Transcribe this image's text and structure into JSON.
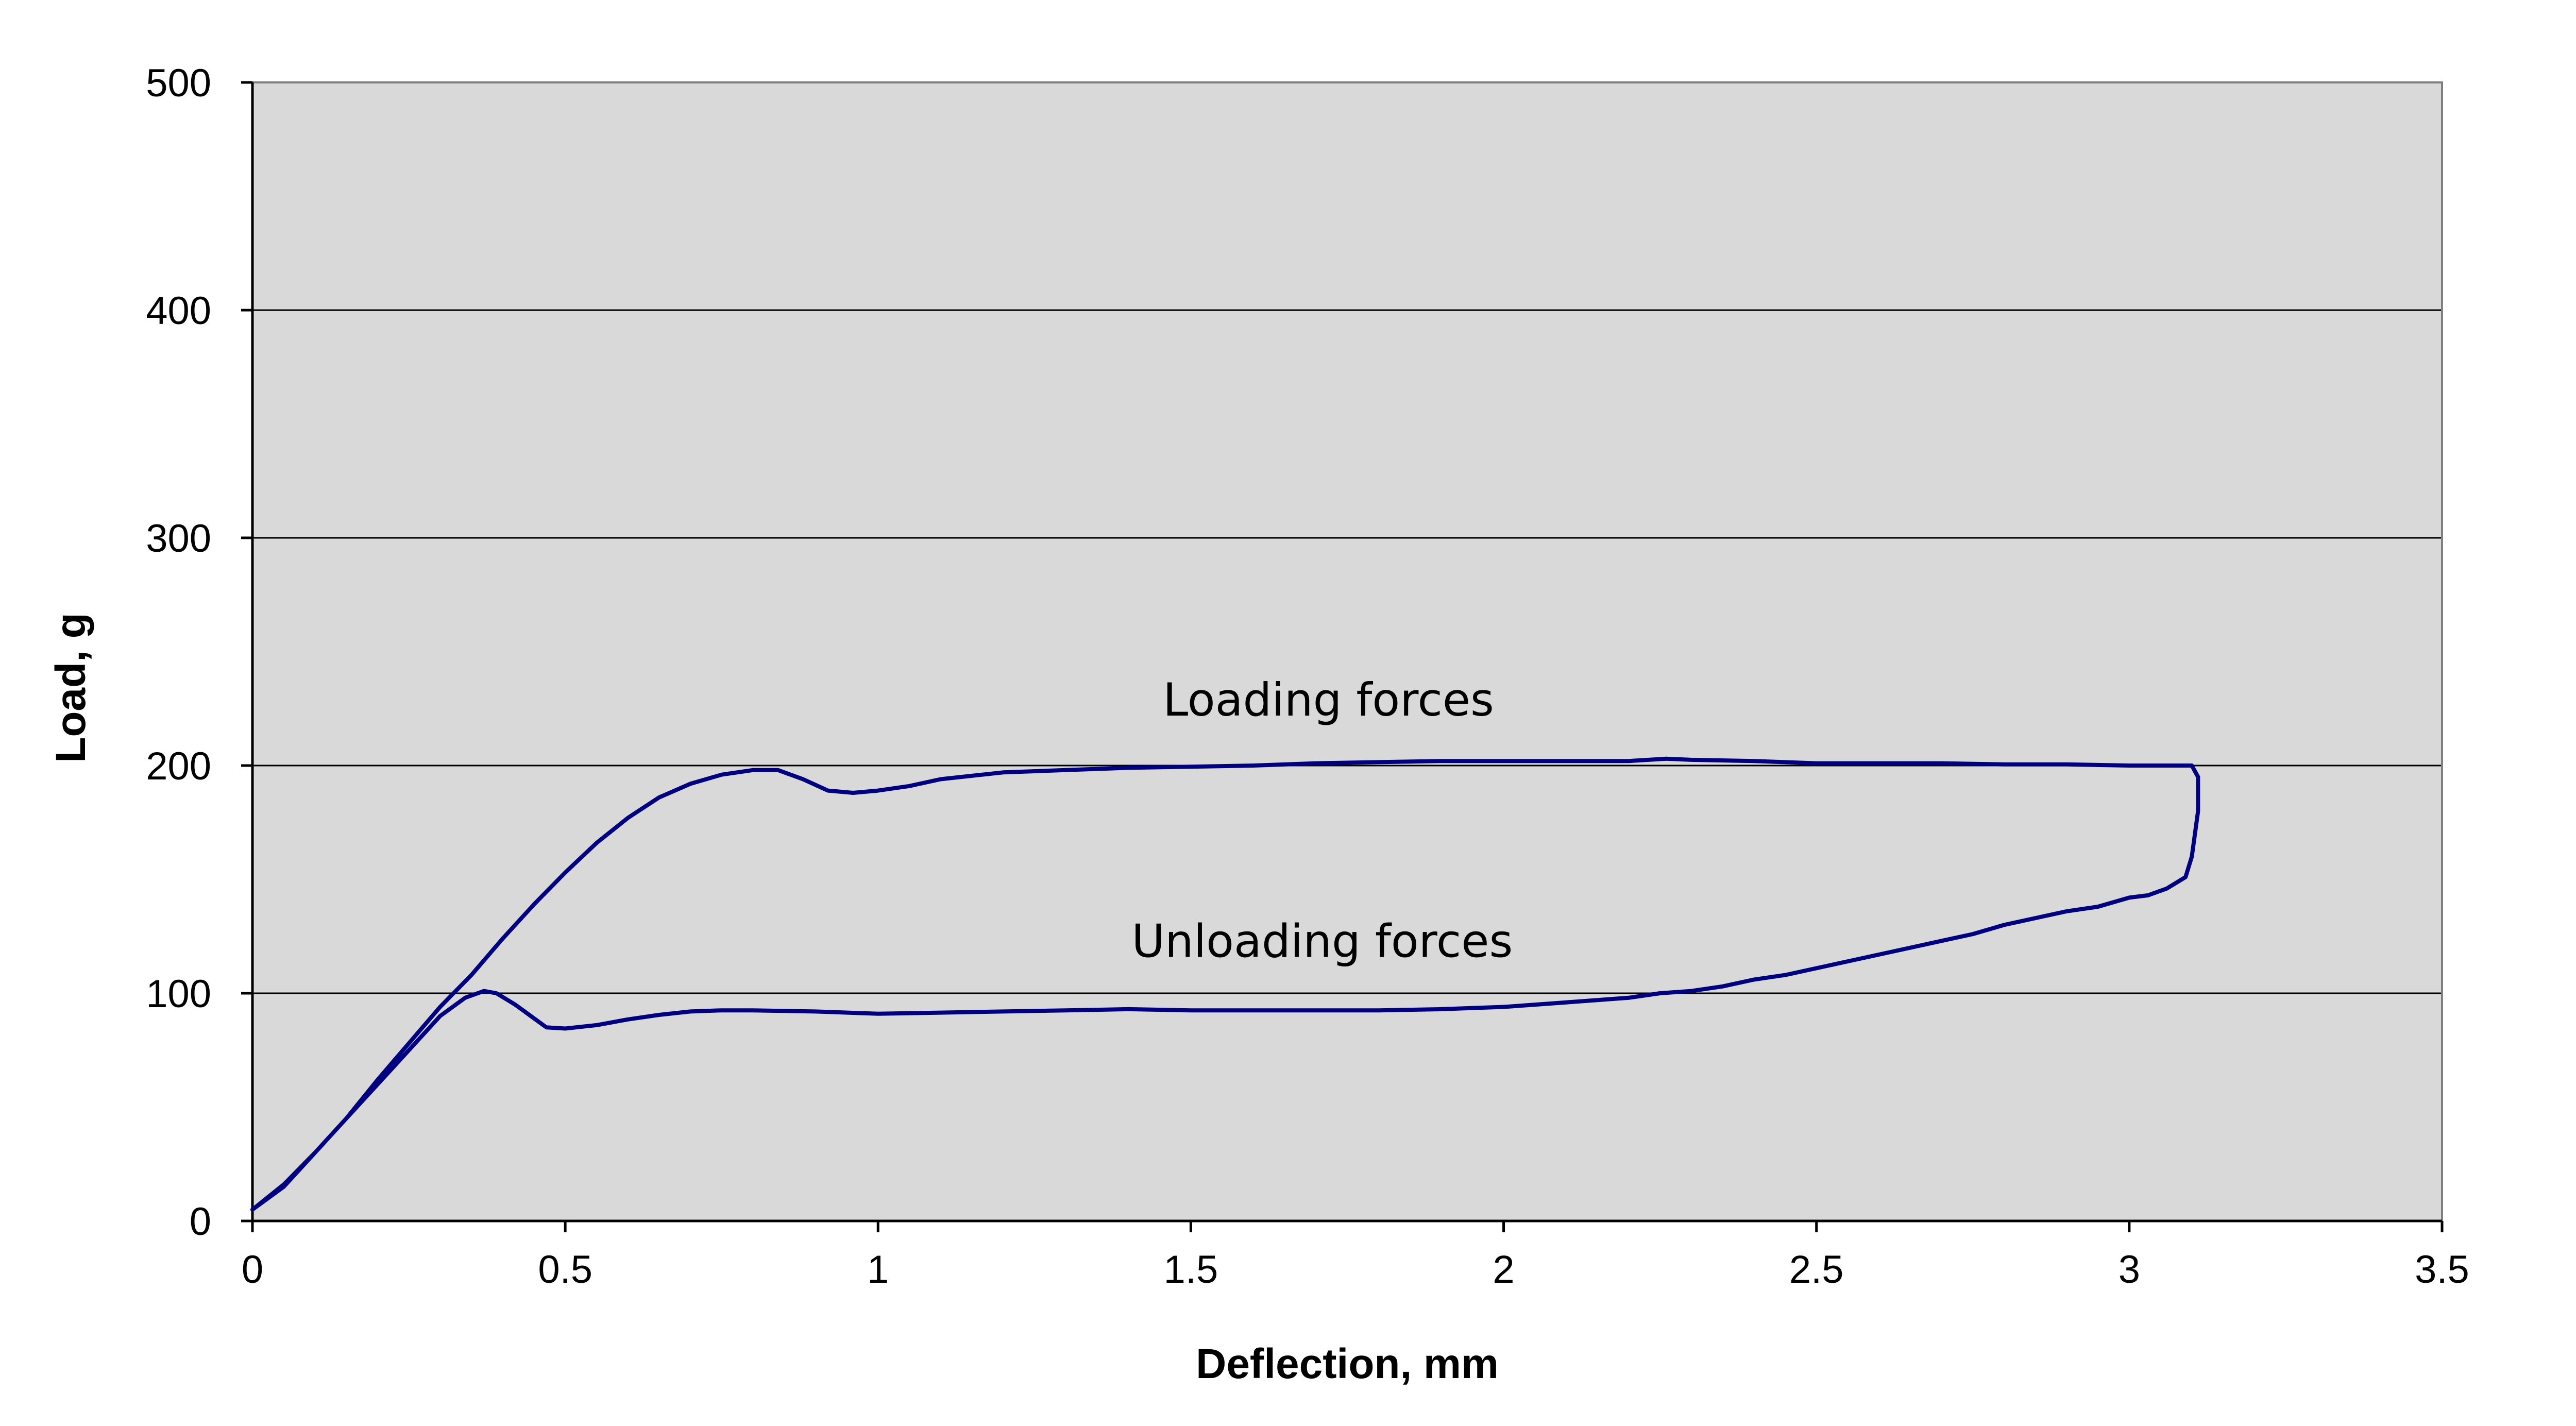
{
  "chart_data": {
    "type": "line",
    "title": "",
    "xlabel": "Deflection, mm",
    "ylabel": "Load, g",
    "xlim": [
      0,
      3.5
    ],
    "ylim": [
      0,
      500
    ],
    "xticks": [
      "0",
      "0.5",
      "1",
      "1.5",
      "2",
      "2.5",
      "3",
      "3.5"
    ],
    "yticks": [
      "0",
      "100",
      "200",
      "300",
      "400",
      "500"
    ],
    "grid": "horizontal",
    "legend": "none",
    "colors": {
      "plot_background": "#d9d9d9",
      "line": "#000080",
      "gridline": "#000000"
    },
    "annotations": [
      {
        "text": "Loading forces",
        "x": 1.72,
        "y": 222
      },
      {
        "text": "Unloading forces",
        "x": 1.71,
        "y": 116
      }
    ],
    "series": [
      {
        "points": [
          [
            0,
            5
          ],
          [
            0.05,
            15
          ],
          [
            0.1,
            30
          ],
          [
            0.15,
            45
          ],
          [
            0.2,
            62
          ],
          [
            0.25,
            78
          ],
          [
            0.3,
            94
          ],
          [
            0.35,
            108
          ],
          [
            0.4,
            124
          ],
          [
            0.45,
            139
          ],
          [
            0.5,
            153
          ],
          [
            0.55,
            166
          ],
          [
            0.6,
            177
          ],
          [
            0.65,
            186
          ],
          [
            0.7,
            192
          ],
          [
            0.75,
            196
          ],
          [
            0.8,
            198
          ],
          [
            0.84,
            198
          ],
          [
            0.88,
            194
          ],
          [
            0.92,
            189
          ],
          [
            0.96,
            188
          ],
          [
            1.0,
            189
          ],
          [
            1.05,
            191
          ],
          [
            1.1,
            194
          ],
          [
            1.2,
            197
          ],
          [
            1.3,
            198
          ],
          [
            1.4,
            199
          ],
          [
            1.5,
            199.5
          ],
          [
            1.6,
            200
          ],
          [
            1.7,
            201
          ],
          [
            1.8,
            201.5
          ],
          [
            1.9,
            202
          ],
          [
            2.0,
            202
          ],
          [
            2.1,
            202
          ],
          [
            2.2,
            202
          ],
          [
            2.26,
            203
          ],
          [
            2.3,
            202.5
          ],
          [
            2.4,
            202
          ],
          [
            2.5,
            201
          ],
          [
            2.6,
            201
          ],
          [
            2.7,
            201
          ],
          [
            2.8,
            200.5
          ],
          [
            2.9,
            200.5
          ],
          [
            3.0,
            200
          ],
          [
            3.05,
            200
          ],
          [
            3.1,
            200
          ],
          [
            3.11,
            195
          ],
          [
            3.11,
            180
          ],
          [
            3.1,
            160
          ],
          [
            3.09,
            151
          ],
          [
            3.06,
            146
          ],
          [
            3.03,
            143
          ],
          [
            3.0,
            142
          ],
          [
            2.95,
            138
          ],
          [
            2.9,
            136
          ],
          [
            2.85,
            133
          ],
          [
            2.8,
            130
          ],
          [
            2.75,
            126
          ],
          [
            2.7,
            123
          ],
          [
            2.65,
            120
          ],
          [
            2.6,
            117
          ],
          [
            2.55,
            114
          ],
          [
            2.5,
            111
          ],
          [
            2.45,
            108
          ],
          [
            2.4,
            106
          ],
          [
            2.35,
            103
          ],
          [
            2.3,
            101
          ],
          [
            2.25,
            100
          ],
          [
            2.2,
            98
          ],
          [
            2.1,
            96
          ],
          [
            2.0,
            94
          ],
          [
            1.9,
            93
          ],
          [
            1.8,
            92.5
          ],
          [
            1.7,
            92.5
          ],
          [
            1.6,
            92.5
          ],
          [
            1.5,
            92.5
          ],
          [
            1.4,
            93
          ],
          [
            1.3,
            92.5
          ],
          [
            1.2,
            92
          ],
          [
            1.1,
            91.5
          ],
          [
            1.0,
            91
          ],
          [
            0.9,
            92
          ],
          [
            0.8,
            92.5
          ],
          [
            0.75,
            92.5
          ],
          [
            0.7,
            92
          ],
          [
            0.65,
            90.5
          ],
          [
            0.6,
            88.5
          ],
          [
            0.55,
            86
          ],
          [
            0.5,
            84.5
          ],
          [
            0.47,
            85
          ],
          [
            0.45,
            89
          ],
          [
            0.42,
            95
          ],
          [
            0.39,
            100
          ],
          [
            0.37,
            101
          ],
          [
            0.34,
            98
          ],
          [
            0.3,
            90
          ],
          [
            0.25,
            75
          ],
          [
            0.2,
            60
          ],
          [
            0.15,
            45
          ],
          [
            0.1,
            30
          ],
          [
            0.05,
            16
          ],
          [
            0,
            5
          ]
        ]
      }
    ]
  }
}
